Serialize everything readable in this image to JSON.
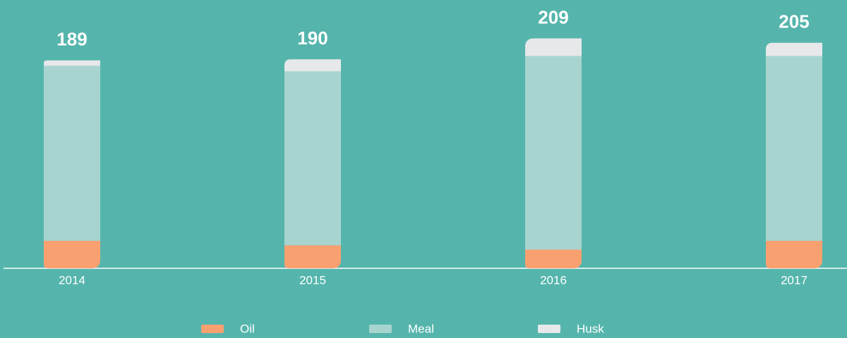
{
  "chart_data": {
    "type": "stacked_bar",
    "categories": [
      "2014",
      "2015",
      "2016",
      "2017"
    ],
    "totals": [
      189,
      190,
      209,
      205
    ],
    "series": [
      {
        "name": "Oil",
        "color": "#f9a071",
        "values": [
          25,
          21,
          17,
          25
        ]
      },
      {
        "name": "Meal",
        "color": "#a8d4d0",
        "values": [
          159,
          158,
          176,
          168
        ]
      },
      {
        "name": "Husk",
        "color": "#e6e8e9",
        "values": [
          5,
          11,
          16,
          12
        ]
      }
    ],
    "ylim": [
      0,
      210
    ]
  }
}
